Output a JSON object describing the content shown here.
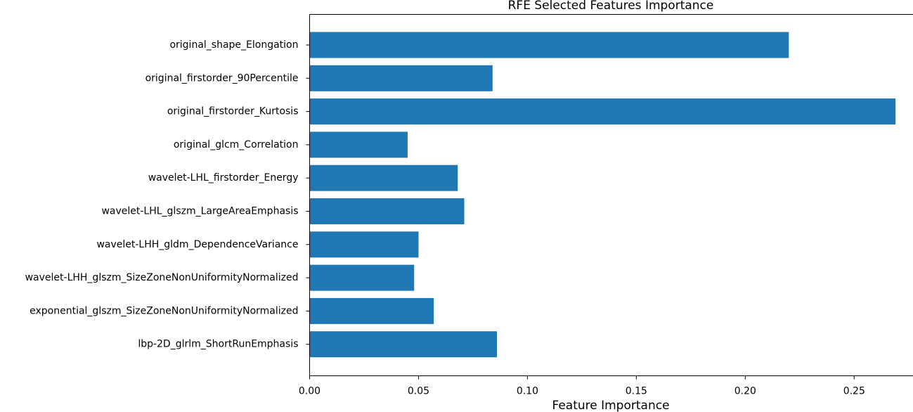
{
  "chart_data": {
    "type": "bar",
    "orientation": "horizontal",
    "title": "RFE Selected Features Importance",
    "xlabel": "Feature Importance",
    "ylabel": "",
    "xlim": [
      0,
      0.2775
    ],
    "xticks": [
      0.0,
      0.05,
      0.1,
      0.15,
      0.2,
      0.25
    ],
    "xtick_labels": [
      "0.00",
      "0.05",
      "0.10",
      "0.15",
      "0.20",
      "0.25"
    ],
    "categories": [
      "original_shape_Elongation",
      "original_firstorder_90Percentile",
      "original_firstorder_Kurtosis",
      "original_glcm_Correlation",
      "wavelet-LHL_firstorder_Energy",
      "wavelet-LHL_glszm_LargeAreaEmphasis",
      "wavelet-LHH_gldm_DependenceVariance",
      "wavelet-LHH_glszm_SizeZoneNonUniformityNormalized",
      "exponential_glszm_SizeZoneNonUniformityNormalized",
      "lbp-2D_glrlm_ShortRunEmphasis"
    ],
    "values": [
      0.22,
      0.084,
      0.269,
      0.045,
      0.068,
      0.071,
      0.05,
      0.048,
      0.057,
      0.086
    ],
    "bar_color": "#1f77b4",
    "grid": false,
    "legend": "none"
  }
}
